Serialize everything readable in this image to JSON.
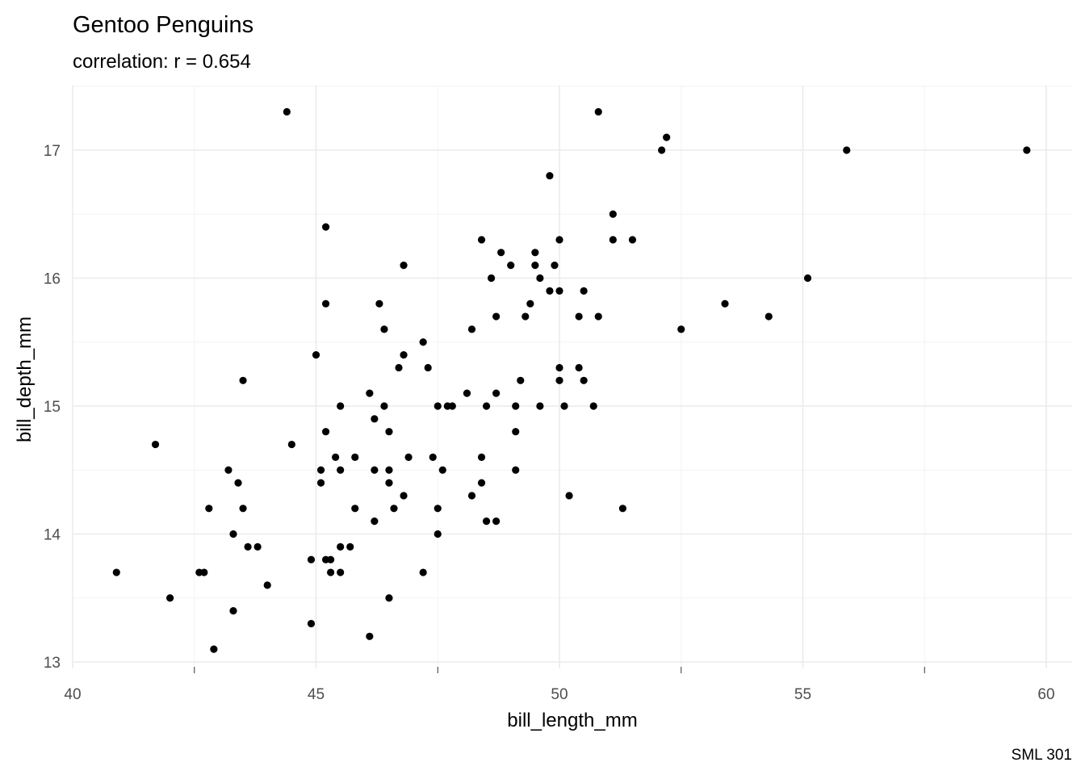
{
  "chart_data": {
    "type": "scatter",
    "title": "Gentoo Penguins",
    "subtitle": "correlation: r = 0.654",
    "xlabel": "bill_length_mm",
    "ylabel": "bill_depth_mm",
    "caption": "SML 301",
    "xlim": [
      40,
      60.5
    ],
    "ylim": [
      12.95,
      17.5
    ],
    "xticks": [
      40,
      45,
      50,
      55,
      60
    ],
    "yticks": [
      13,
      14,
      15,
      16,
      17
    ],
    "xtick_labels": [
      "40",
      "45",
      "50",
      "55",
      "60"
    ],
    "ytick_labels": [
      "13",
      "14",
      "15",
      "16",
      "17"
    ],
    "grid": true,
    "point_color": "#000000",
    "points": [
      [
        44.4,
        17.3
      ],
      [
        50.8,
        17.3
      ],
      [
        52.2,
        17.1
      ],
      [
        52.1,
        17.0
      ],
      [
        55.9,
        17.0
      ],
      [
        59.6,
        17.0
      ],
      [
        49.8,
        16.8
      ],
      [
        51.1,
        16.5
      ],
      [
        45.2,
        16.4
      ],
      [
        48.4,
        16.3
      ],
      [
        50.0,
        16.3
      ],
      [
        51.1,
        16.3
      ],
      [
        51.5,
        16.3
      ],
      [
        48.8,
        16.2
      ],
      [
        49.5,
        16.2
      ],
      [
        46.8,
        16.1
      ],
      [
        49.0,
        16.1
      ],
      [
        49.5,
        16.1
      ],
      [
        49.9,
        16.1
      ],
      [
        48.6,
        16.0
      ],
      [
        49.6,
        16.0
      ],
      [
        55.1,
        16.0
      ],
      [
        49.8,
        15.9
      ],
      [
        50.0,
        15.9
      ],
      [
        50.5,
        15.9
      ],
      [
        45.2,
        15.8
      ],
      [
        46.3,
        15.8
      ],
      [
        49.4,
        15.8
      ],
      [
        53.4,
        15.8
      ],
      [
        48.7,
        15.7
      ],
      [
        49.3,
        15.7
      ],
      [
        50.4,
        15.7
      ],
      [
        50.8,
        15.7
      ],
      [
        54.3,
        15.7
      ],
      [
        46.4,
        15.6
      ],
      [
        48.2,
        15.6
      ],
      [
        52.5,
        15.6
      ],
      [
        47.2,
        15.5
      ],
      [
        45.0,
        15.4
      ],
      [
        46.8,
        15.4
      ],
      [
        46.7,
        15.3
      ],
      [
        47.3,
        15.3
      ],
      [
        50.0,
        15.3
      ],
      [
        50.4,
        15.3
      ],
      [
        43.5,
        15.2
      ],
      [
        49.2,
        15.2
      ],
      [
        50.0,
        15.2
      ],
      [
        50.5,
        15.2
      ],
      [
        46.1,
        15.1
      ],
      [
        48.1,
        15.1
      ],
      [
        48.7,
        15.1
      ],
      [
        45.5,
        15.0
      ],
      [
        46.4,
        15.0
      ],
      [
        47.5,
        15.0
      ],
      [
        47.7,
        15.0
      ],
      [
        47.8,
        15.0
      ],
      [
        48.5,
        15.0
      ],
      [
        49.1,
        15.0
      ],
      [
        49.6,
        15.0
      ],
      [
        50.1,
        15.0
      ],
      [
        50.7,
        15.0
      ],
      [
        46.2,
        14.9
      ],
      [
        45.2,
        14.8
      ],
      [
        46.5,
        14.8
      ],
      [
        49.1,
        14.8
      ],
      [
        41.7,
        14.7
      ],
      [
        44.5,
        14.7
      ],
      [
        45.4,
        14.6
      ],
      [
        45.8,
        14.6
      ],
      [
        46.9,
        14.6
      ],
      [
        47.4,
        14.6
      ],
      [
        48.4,
        14.6
      ],
      [
        43.2,
        14.5
      ],
      [
        45.1,
        14.5
      ],
      [
        45.5,
        14.5
      ],
      [
        46.2,
        14.5
      ],
      [
        46.5,
        14.5
      ],
      [
        47.6,
        14.5
      ],
      [
        49.1,
        14.5
      ],
      [
        43.4,
        14.4
      ],
      [
        45.1,
        14.4
      ],
      [
        46.5,
        14.4
      ],
      [
        48.4,
        14.4
      ],
      [
        46.8,
        14.3
      ],
      [
        48.2,
        14.3
      ],
      [
        50.2,
        14.3
      ],
      [
        42.8,
        14.2
      ],
      [
        43.5,
        14.2
      ],
      [
        45.8,
        14.2
      ],
      [
        46.6,
        14.2
      ],
      [
        47.5,
        14.2
      ],
      [
        51.3,
        14.2
      ],
      [
        46.2,
        14.1
      ],
      [
        48.5,
        14.1
      ],
      [
        48.7,
        14.1
      ],
      [
        43.3,
        14.0
      ],
      [
        47.5,
        14.0
      ],
      [
        43.6,
        13.9
      ],
      [
        43.8,
        13.9
      ],
      [
        45.5,
        13.9
      ],
      [
        45.7,
        13.9
      ],
      [
        44.9,
        13.8
      ],
      [
        45.2,
        13.8
      ],
      [
        45.3,
        13.8
      ],
      [
        40.9,
        13.7
      ],
      [
        42.6,
        13.7
      ],
      [
        42.7,
        13.7
      ],
      [
        45.3,
        13.7
      ],
      [
        45.5,
        13.7
      ],
      [
        47.2,
        13.7
      ],
      [
        44.0,
        13.6
      ],
      [
        42.0,
        13.5
      ],
      [
        46.5,
        13.5
      ],
      [
        43.3,
        13.4
      ],
      [
        44.9,
        13.3
      ],
      [
        46.1,
        13.2
      ],
      [
        42.9,
        13.1
      ]
    ]
  }
}
